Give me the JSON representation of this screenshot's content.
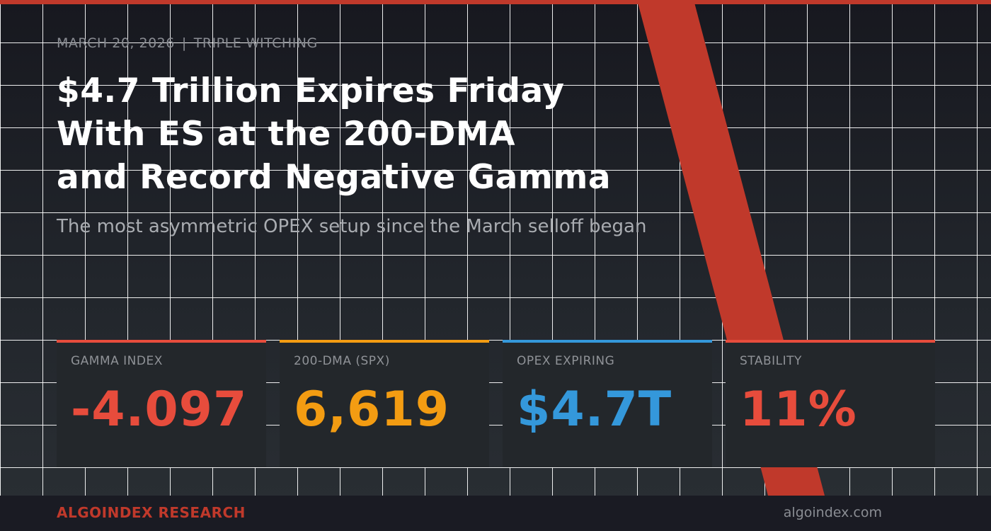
{
  "header": {
    "date": "MARCH 20, 2026",
    "separator": "|",
    "event": "TRIPLE WITCHING"
  },
  "headline": {
    "lines": [
      "$4.7 Trillion Expires Friday",
      "With ES at the 200-DMA",
      "and Record Negative Gamma"
    ]
  },
  "subtitle": "The most asymmetric OPEX setup since the March selloff began",
  "cards": [
    {
      "label": "GAMMA INDEX",
      "value": "-4.097",
      "color": "#e74c3c"
    },
    {
      "label": "200-DMA (SPX)",
      "value": "6,619",
      "color": "#f39c12"
    },
    {
      "label": "OPEX EXPIRING",
      "value": "$4.7T",
      "color": "#3498db"
    },
    {
      "label": "STABILITY",
      "value": "11%",
      "color": "#e74c3c"
    }
  ],
  "footer": {
    "brand": "ALGOINDEX RESEARCH",
    "url": "algoindex.com"
  },
  "colors": {
    "accent": "#c0392b",
    "background": "#1b1d24",
    "card": "#23272b"
  }
}
